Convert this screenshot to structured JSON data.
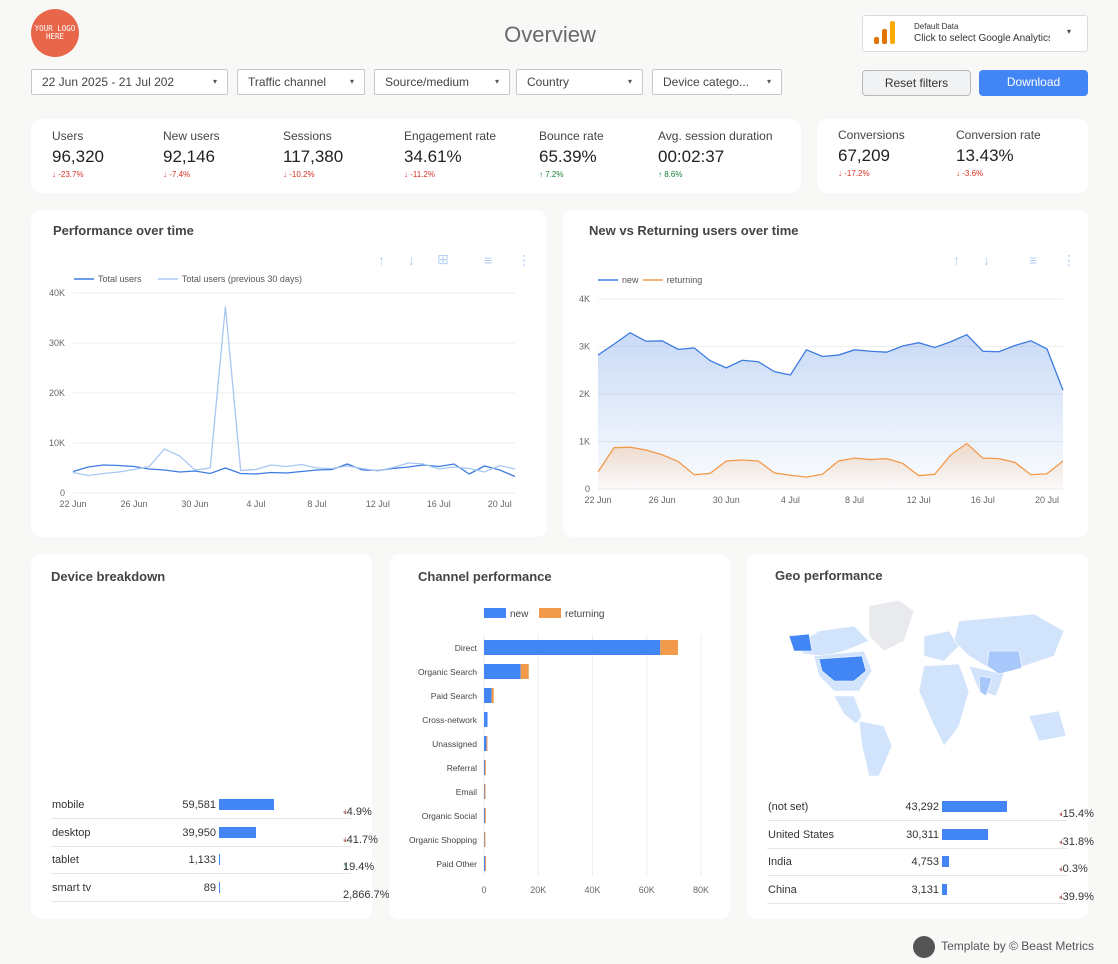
{
  "header": {
    "logo_text": "YOUR LOGO HERE",
    "title": "Overview",
    "data_source": {
      "line1": "Default Data",
      "line2": "Click to select Google Analytics"
    }
  },
  "filters": [
    {
      "label": "22 Jun 2025 - 21 Jul 202"
    },
    {
      "label": "Traffic channel"
    },
    {
      "label": "Source/medium"
    },
    {
      "label": "Country"
    },
    {
      "label": "Device catego..."
    }
  ],
  "buttons": {
    "reset": "Reset filters",
    "download": "Download"
  },
  "kpis": [
    {
      "label": "Users",
      "value": "96,320",
      "change": "-23.7%",
      "dir": "down"
    },
    {
      "label": "New users",
      "value": "92,146",
      "change": "-7.4%",
      "dir": "down"
    },
    {
      "label": "Sessions",
      "value": "117,380",
      "change": "-10.2%",
      "dir": "down"
    },
    {
      "label": "Engagement rate",
      "value": "34.61%",
      "change": "-11.2%",
      "dir": "down"
    },
    {
      "label": "Bounce rate",
      "value": "65.39%",
      "change": "7.2%",
      "dir": "up"
    },
    {
      "label": "Avg. session duration",
      "value": "00:02:37",
      "change": "8.6%",
      "dir": "up"
    }
  ],
  "kpis_conv": [
    {
      "label": "Conversions",
      "value": "67,209",
      "change": "-17.2%",
      "dir": "down"
    },
    {
      "label": "Conversion rate",
      "value": "13.43%",
      "change": "-3.6%",
      "dir": "down"
    }
  ],
  "perf_chart_title": "Performance over time",
  "nvr_chart_title": "New vs Returning users over time",
  "device": {
    "title": "Device breakdown",
    "rows": [
      {
        "name": "mobile",
        "value": "59,581",
        "num": 59581,
        "change": "-4.9%",
        "dir": "down"
      },
      {
        "name": "desktop",
        "value": "39,950",
        "num": 39950,
        "change": "-41.7%",
        "dir": "down"
      },
      {
        "name": "tablet",
        "value": "1,133",
        "num": 1133,
        "change": "19.4%",
        "dir": "up"
      },
      {
        "name": "smart tv",
        "value": "89",
        "num": 89,
        "change": "2,866.7%...",
        "dir": ""
      }
    ]
  },
  "geo": {
    "title": "Geo performance",
    "rows": [
      {
        "name": "(not set)",
        "value": "43,292",
        "num": 43292,
        "change": "-15.4%",
        "dir": "down"
      },
      {
        "name": "United States",
        "value": "30,311",
        "num": 30311,
        "change": "-31.8%",
        "dir": "down"
      },
      {
        "name": "India",
        "value": "4,753",
        "num": 4753,
        "change": "-0.3%",
        "dir": "down"
      },
      {
        "name": "China",
        "value": "3,131",
        "num": 3131,
        "change": "-39.9%",
        "dir": "down"
      }
    ]
  },
  "chart_data": [
    {
      "type": "line",
      "title": "Performance over time",
      "x": [
        "22 Jun",
        "23 Jun",
        "24 Jun",
        "25 Jun",
        "26 Jun",
        "27 Jun",
        "28 Jun",
        "29 Jun",
        "30 Jun",
        "1 Jul",
        "2 Jul",
        "3 Jul",
        "4 Jul",
        "5 Jul",
        "6 Jul",
        "7 Jul",
        "8 Jul",
        "9 Jul",
        "10 Jul",
        "11 Jul",
        "12 Jul",
        "13 Jul",
        "14 Jul",
        "15 Jul",
        "16 Jul",
        "17 Jul",
        "18 Jul",
        "19 Jul",
        "20 Jul",
        "21 Jul"
      ],
      "x_ticks": [
        "22 Jun",
        "26 Jun",
        "30 Jun",
        "4 Jul",
        "8 Jul",
        "12 Jul",
        "16 Jul",
        "20 Jul"
      ],
      "y_ticks": [
        "0",
        "10K",
        "20K",
        "30K",
        "40K"
      ],
      "ylim": [
        0,
        40000
      ],
      "series": [
        {
          "name": "Total users",
          "color": "#3d7be0",
          "values": [
            4300,
            5200,
            5600,
            5500,
            5300,
            4800,
            4600,
            4200,
            4400,
            3900,
            5000,
            3900,
            3800,
            4100,
            4000,
            4300,
            4600,
            4700,
            5800,
            4600,
            4500,
            4900,
            5200,
            5600,
            5300,
            5800,
            3800,
            5400,
            4600,
            3300
          ]
        },
        {
          "name": "Total users (previous 30 days)",
          "color": "#a8c7f2",
          "values": [
            4100,
            3500,
            3900,
            4200,
            4700,
            5300,
            8800,
            7400,
            4600,
            5000,
            37300,
            4500,
            4700,
            5600,
            5300,
            5700,
            5000,
            4900,
            5400,
            4900,
            4400,
            5100,
            6000,
            5800,
            4800,
            5200,
            4900,
            4200,
            5500,
            4800
          ]
        }
      ]
    },
    {
      "type": "area",
      "title": "New vs Returning users over time",
      "x_ticks": [
        "22 Jun",
        "26 Jun",
        "30 Jun",
        "4 Jul",
        "8 Jul",
        "12 Jul",
        "16 Jul",
        "20 Jul"
      ],
      "y_ticks": [
        "0",
        "1K",
        "2K",
        "3K",
        "4K"
      ],
      "ylim": [
        0,
        4000
      ],
      "series": [
        {
          "name": "new",
          "color": "#3d7be0",
          "values": [
            2820,
            3050,
            3290,
            3110,
            3120,
            2940,
            2970,
            2700,
            2550,
            2710,
            2680,
            2470,
            2400,
            2930,
            2790,
            2820,
            2930,
            2900,
            2880,
            3010,
            3080,
            2980,
            3100,
            3250,
            2900,
            2890,
            3020,
            3120,
            2950,
            2080
          ]
        },
        {
          "name": "returning",
          "color": "#f19a4c",
          "values": [
            360,
            870,
            880,
            820,
            720,
            580,
            300,
            330,
            590,
            610,
            590,
            340,
            290,
            250,
            310,
            590,
            650,
            620,
            640,
            540,
            280,
            310,
            720,
            960,
            650,
            640,
            560,
            300,
            320,
            590
          ]
        }
      ]
    },
    {
      "type": "bar",
      "orientation": "horizontal",
      "stacked": true,
      "title": "Channel performance",
      "categories": [
        "Direct",
        "Organic Search",
        "Paid Search",
        "Cross-network",
        "Unassigned",
        "Referral",
        "Email",
        "Organic Social",
        "Organic Shopping",
        "Paid Other"
      ],
      "x_ticks": [
        "0",
        "20K",
        "40K",
        "60K",
        "80K"
      ],
      "xlim": [
        0,
        80000
      ],
      "series": [
        {
          "name": "new",
          "color": "#4285f4",
          "values": [
            65000,
            13500,
            2800,
            1300,
            900,
            300,
            200,
            300,
            150,
            400
          ]
        },
        {
          "name": "returning",
          "color": "#f19a4c",
          "values": [
            6500,
            3000,
            800,
            0,
            100,
            200,
            100,
            200,
            350,
            100
          ]
        }
      ]
    }
  ],
  "footer": "Template by © Beast Metrics"
}
